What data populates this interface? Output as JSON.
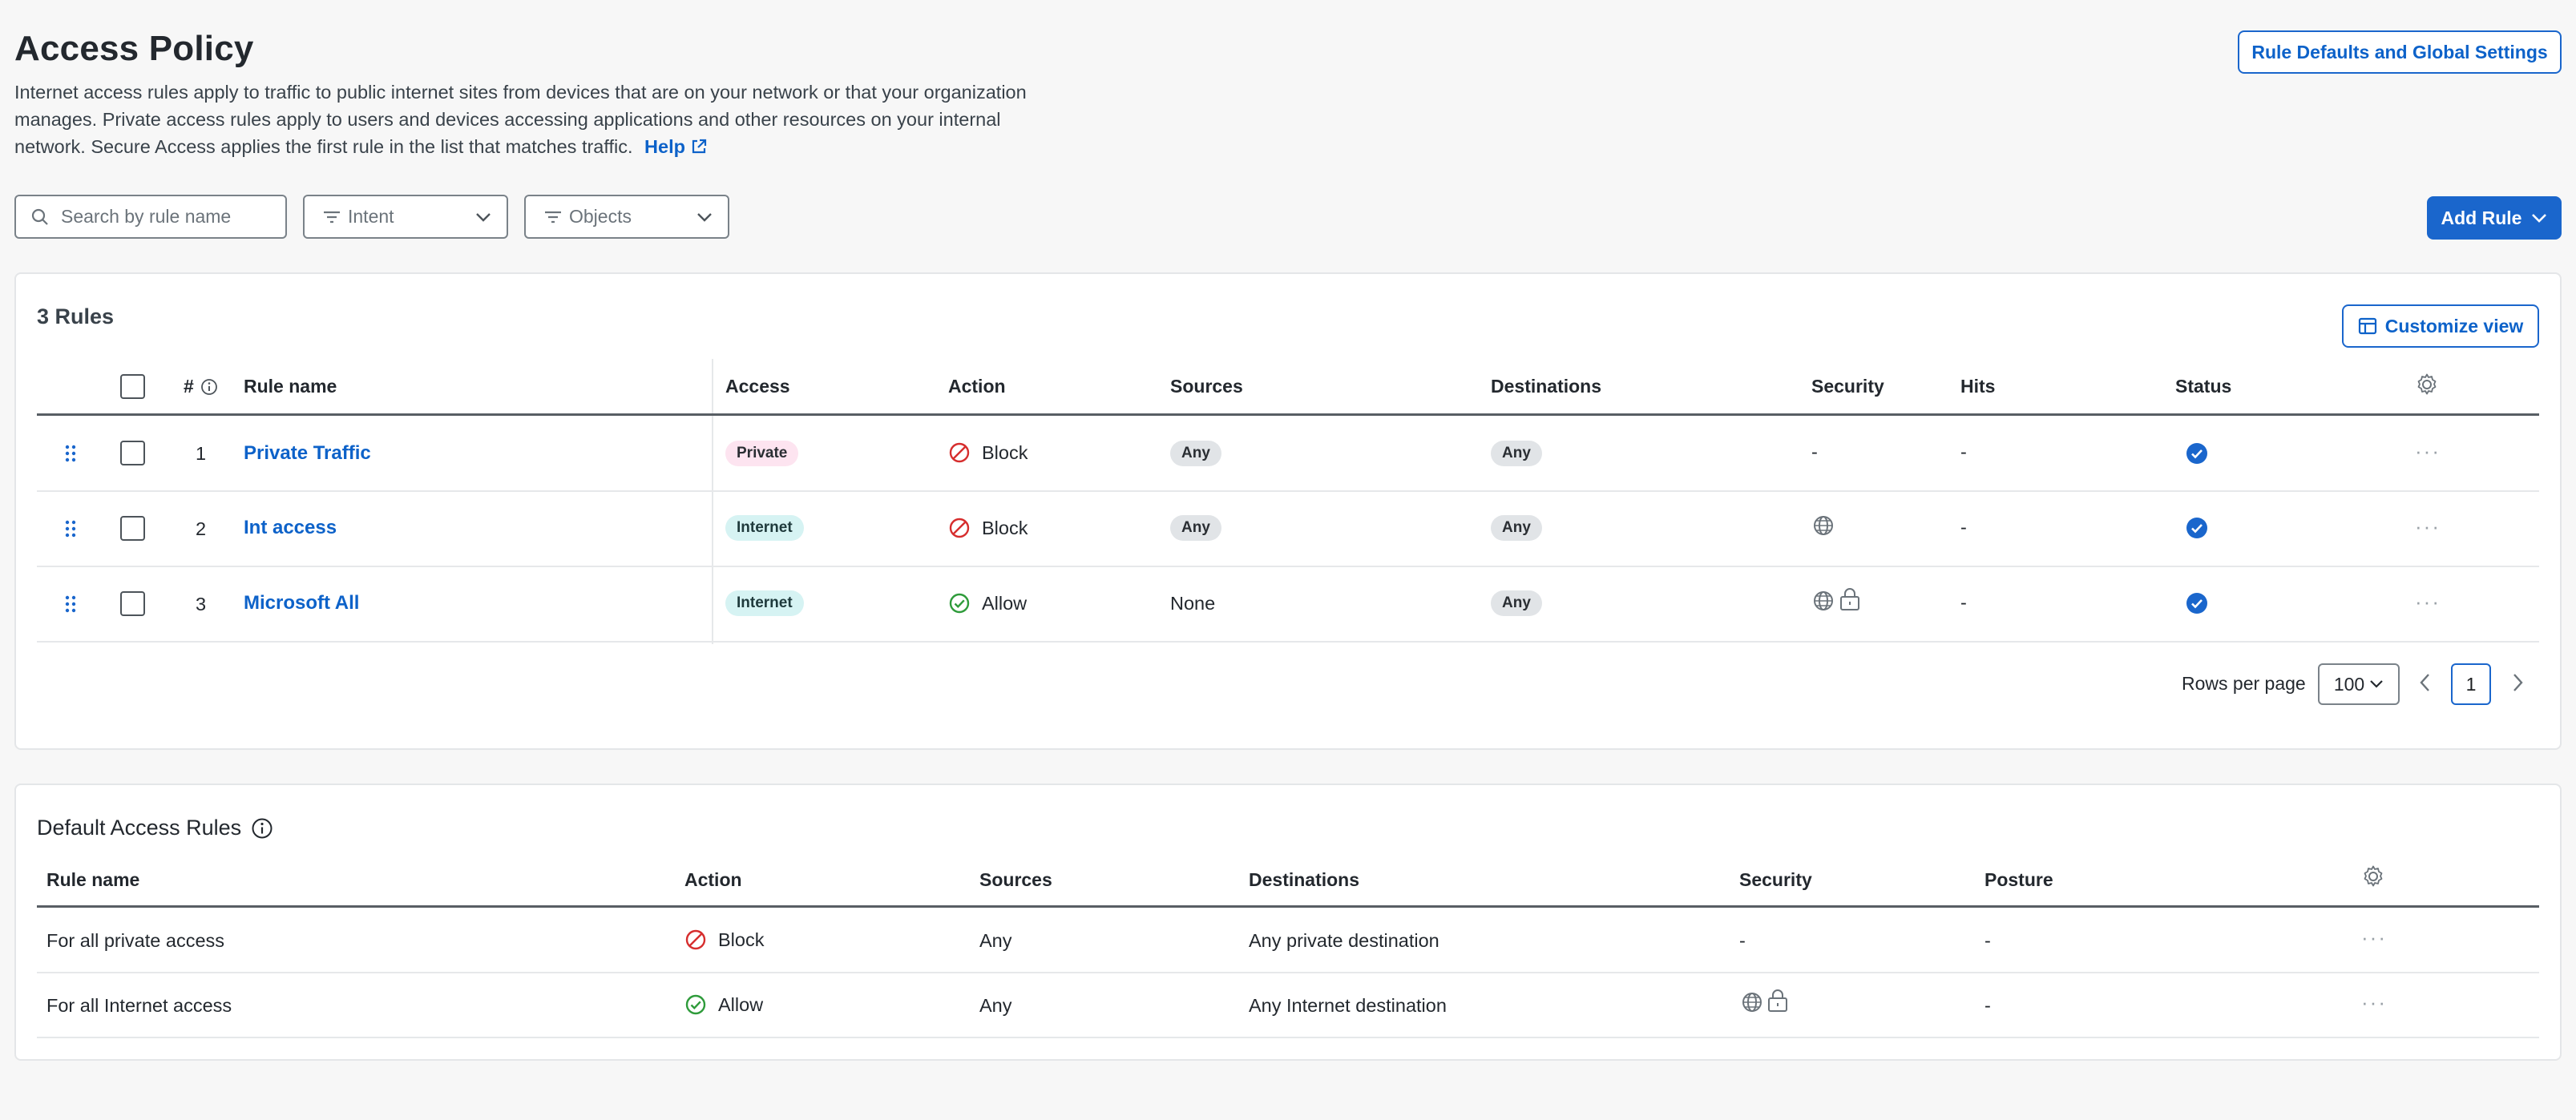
{
  "header": {
    "title": "Access Policy",
    "description": "Internet access rules apply to traffic to public internet sites from devices that are on your network or that your organization manages. Private access rules apply to users and devices accessing applications and other resources on your internal network. Secure Access applies the first rule in the list that matches traffic.",
    "help_label": "Help",
    "settings_button": "Rule Defaults and Global Settings"
  },
  "filters": {
    "search_placeholder": "Search by rule name",
    "intent_label": "Intent",
    "objects_label": "Objects",
    "add_rule_label": "Add Rule"
  },
  "rules": {
    "count_label": "3 Rules",
    "customize_label": "Customize view",
    "columns": {
      "number": "#",
      "name": "Rule name",
      "access": "Access",
      "action": "Action",
      "sources": "Sources",
      "destinations": "Destinations",
      "security": "Security",
      "hits": "Hits",
      "status": "Status"
    },
    "rows": [
      {
        "number": "1",
        "name": "Private Traffic",
        "access": "Private",
        "action": "Block",
        "sources": "Any",
        "destinations": "Any",
        "security": "-",
        "hits": "-"
      },
      {
        "number": "2",
        "name": "Int access",
        "access": "Internet",
        "action": "Block",
        "sources": "Any",
        "destinations": "Any",
        "security": "",
        "hits": "-"
      },
      {
        "number": "3",
        "name": "Microsoft All",
        "access": "Internet",
        "action": "Allow",
        "sources": "None",
        "destinations": "Any",
        "security": "",
        "hits": "-"
      }
    ],
    "pagination": {
      "rows_per_page_label": "Rows per page",
      "rows_per_page": "100",
      "current_page": "1"
    }
  },
  "defaults": {
    "title": "Default Access Rules",
    "columns": {
      "name": "Rule name",
      "action": "Action",
      "sources": "Sources",
      "destinations": "Destinations",
      "security": "Security",
      "posture": "Posture"
    },
    "rows": [
      {
        "name": "For all private access",
        "action": "Block",
        "sources": "Any",
        "destinations": "Any private destination",
        "security": "-",
        "posture": "-"
      },
      {
        "name": "For all Internet access",
        "action": "Allow",
        "sources": "Any",
        "destinations": "Any Internet destination",
        "security": "",
        "posture": "-"
      }
    ]
  },
  "colors": {
    "accent": "#1a66cc",
    "block": "#d62d2d",
    "allow": "#2e9b3a"
  },
  "icons": [
    "search-icon",
    "filter-icon",
    "chevron-down-icon",
    "info-icon",
    "gear-icon",
    "drag-handle-icon",
    "block-icon",
    "allow-icon",
    "check-circle-icon",
    "globe-icon",
    "lock-icon",
    "more-icon",
    "external-link-icon",
    "layout-icon"
  ]
}
